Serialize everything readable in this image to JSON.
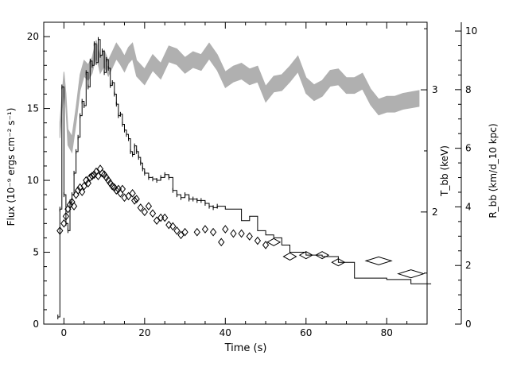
{
  "chart_data": {
    "type": "line",
    "title": "",
    "xlabel": "Time (s)",
    "ylabel_left": "Flux (10⁻⁹ ergs cm⁻² s⁻¹)",
    "ylabel_right_t": "T_bb (keV)",
    "ylabel_right_r": "R_bb (km/d_10 kpc)",
    "xlim": [
      -5,
      90
    ],
    "ylim": [
      0,
      21
    ],
    "x_ticks": [
      0,
      20,
      40,
      60,
      80
    ],
    "y_ticks": [
      0,
      5,
      10,
      15,
      20
    ],
    "t_axis": {
      "label_ticks": [
        2,
        3
      ],
      "label_positions_flux": [
        7.8,
        16.3
      ]
    },
    "r_axis": {
      "range": [
        0,
        10.3
      ],
      "ticks": [
        0,
        2,
        4,
        6,
        8,
        10
      ]
    },
    "series": [
      {
        "kind": "flux-histogram",
        "points": [
          [
            -1.5,
            0.5
          ],
          [
            -1,
            8
          ],
          [
            -0.5,
            16.5
          ],
          [
            0,
            9
          ],
          [
            0.5,
            7
          ],
          [
            1,
            6.5
          ],
          [
            1.5,
            8.5
          ],
          [
            2,
            9
          ],
          [
            2.5,
            10.5
          ],
          [
            3,
            12
          ],
          [
            3.5,
            13
          ],
          [
            4,
            14.5
          ],
          [
            4.5,
            15.5
          ],
          [
            5,
            15.2
          ],
          [
            5.5,
            17.5
          ],
          [
            6,
            16.5
          ],
          [
            6.5,
            18.3
          ],
          [
            7,
            18
          ],
          [
            7.5,
            19.5
          ],
          [
            8,
            18.2
          ],
          [
            8.5,
            19.8
          ],
          [
            9,
            18.7
          ],
          [
            9.5,
            19
          ],
          [
            10,
            17.5
          ],
          [
            10.5,
            18.4
          ],
          [
            11,
            17.8
          ],
          [
            11.5,
            16.6
          ],
          [
            12,
            16.8
          ],
          [
            12.5,
            16
          ],
          [
            13,
            15.3
          ],
          [
            13.5,
            14.5
          ],
          [
            14,
            14.6
          ],
          [
            14.5,
            13.9
          ],
          [
            15,
            13.5
          ],
          [
            15.5,
            13.2
          ],
          [
            16,
            12.9
          ],
          [
            16.5,
            12
          ],
          [
            17,
            11.8
          ],
          [
            17.5,
            12.4
          ],
          [
            18,
            12
          ],
          [
            18.5,
            11.6
          ],
          [
            19,
            11.2
          ],
          [
            19.5,
            10.8
          ],
          [
            20,
            10.5
          ],
          [
            21,
            10.2
          ],
          [
            22,
            10.1
          ],
          [
            23,
            10
          ],
          [
            24,
            10.2
          ],
          [
            25,
            10.4
          ],
          [
            26,
            10.2
          ],
          [
            27,
            9.3
          ],
          [
            28,
            9
          ],
          [
            29,
            8.8
          ],
          [
            30,
            9
          ],
          [
            31,
            8.7
          ],
          [
            32,
            8.7
          ],
          [
            33,
            8.6
          ],
          [
            34,
            8.6
          ],
          [
            35,
            8.4
          ],
          [
            36,
            8.2
          ],
          [
            37,
            8.1
          ],
          [
            38,
            8.2
          ],
          [
            40,
            8
          ],
          [
            42,
            8
          ],
          [
            44,
            7.2
          ],
          [
            46,
            7.5
          ],
          [
            48,
            6.5
          ],
          [
            50,
            6.2
          ],
          [
            52,
            6
          ],
          [
            54,
            5.5
          ],
          [
            56,
            5
          ],
          [
            60,
            4.8
          ],
          [
            64,
            4.7
          ],
          [
            68,
            4.3
          ],
          [
            72,
            3.2
          ],
          [
            80,
            3.1
          ],
          [
            86,
            2.8
          ],
          [
            90,
            2.8
          ]
        ]
      },
      {
        "kind": "temperature-diamonds",
        "points": [
          [
            -1,
            6.5
          ],
          [
            0,
            7
          ],
          [
            0.5,
            7.5
          ],
          [
            1,
            8
          ],
          [
            1.5,
            8.3
          ],
          [
            2,
            8.5
          ],
          [
            2.5,
            8.2
          ],
          [
            3,
            9
          ],
          [
            3.5,
            9.3
          ],
          [
            4,
            9.5
          ],
          [
            4.5,
            9.2
          ],
          [
            5,
            9.6
          ],
          [
            5.5,
            10
          ],
          [
            6,
            9.8
          ],
          [
            6.5,
            10.2
          ],
          [
            7,
            10.3
          ],
          [
            7.5,
            10.4
          ],
          [
            8,
            10.6
          ],
          [
            8.5,
            10.3
          ],
          [
            9,
            10.8
          ],
          [
            9.5,
            10.5
          ],
          [
            10,
            10.4
          ],
          [
            10.5,
            10.2
          ],
          [
            11,
            10
          ],
          [
            11.5,
            9.8
          ],
          [
            12,
            9.6
          ],
          [
            12.5,
            9.5
          ],
          [
            13,
            9.3
          ],
          [
            13.5,
            9.4
          ],
          [
            14,
            9.1
          ],
          [
            14.5,
            9.4
          ],
          [
            15,
            8.8
          ],
          [
            16,
            8.9
          ],
          [
            17,
            9.1
          ],
          [
            17.5,
            8.6
          ],
          [
            18,
            8.7
          ],
          [
            19,
            8.1
          ],
          [
            20,
            7.8
          ],
          [
            21,
            8.2
          ],
          [
            22,
            7.7
          ],
          [
            23,
            7.2
          ],
          [
            24,
            7.4
          ],
          [
            25,
            7.4
          ],
          [
            26,
            6.9
          ],
          [
            27,
            6.8
          ],
          [
            28,
            6.5
          ],
          [
            29,
            6.2
          ],
          [
            30,
            6.4
          ],
          [
            33,
            6.4
          ],
          [
            35,
            6.6
          ],
          [
            37,
            6.4
          ],
          [
            39,
            5.7
          ],
          [
            40,
            6.6
          ],
          [
            42,
            6.3
          ],
          [
            44,
            6.3
          ],
          [
            46,
            6.1
          ],
          [
            48,
            5.8
          ],
          [
            50,
            5.5
          ],
          [
            52,
            5.7
          ],
          [
            56,
            4.7
          ],
          [
            60,
            4.8
          ],
          [
            64,
            4.8
          ],
          [
            68,
            4.3
          ],
          [
            78,
            4.4
          ],
          [
            86,
            3.5
          ]
        ]
      },
      {
        "kind": "radius-band",
        "center": [
          [
            -1,
            13.5
          ],
          [
            0,
            17
          ],
          [
            0.5,
            15.5
          ],
          [
            1,
            13
          ],
          [
            2,
            12.5
          ],
          [
            3,
            14.5
          ],
          [
            4,
            16.8
          ],
          [
            5,
            17.8
          ],
          [
            6,
            17.5
          ],
          [
            7,
            18
          ],
          [
            8,
            19.2
          ],
          [
            9,
            18
          ],
          [
            10,
            18.5
          ],
          [
            11,
            17.8
          ],
          [
            12,
            18.4
          ],
          [
            13,
            19
          ],
          [
            14,
            18.6
          ],
          [
            15,
            18.1
          ],
          [
            16,
            18.7
          ],
          [
            17,
            19
          ],
          [
            18,
            17.8
          ],
          [
            20,
            17.2
          ],
          [
            22,
            18.2
          ],
          [
            24,
            17.6
          ],
          [
            26,
            18.8
          ],
          [
            28,
            18.6
          ],
          [
            30,
            18
          ],
          [
            32,
            18.4
          ],
          [
            34,
            18.2
          ],
          [
            36,
            19
          ],
          [
            38,
            18.2
          ],
          [
            40,
            17
          ],
          [
            42,
            17.4
          ],
          [
            44,
            17.6
          ],
          [
            46,
            17.2
          ],
          [
            48,
            17.4
          ],
          [
            50,
            16
          ],
          [
            52,
            16.7
          ],
          [
            54,
            16.8
          ],
          [
            56,
            17.4
          ],
          [
            58,
            18.1
          ],
          [
            60,
            16.6
          ],
          [
            62,
            16.1
          ],
          [
            64,
            16.4
          ],
          [
            66,
            17.1
          ],
          [
            68,
            17.2
          ],
          [
            70,
            16.6
          ],
          [
            72,
            16.6
          ],
          [
            74,
            16.9
          ],
          [
            76,
            15.8
          ],
          [
            78,
            15.1
          ],
          [
            80,
            15.3
          ],
          [
            82,
            15.3
          ],
          [
            84,
            15.5
          ],
          [
            86,
            15.6
          ],
          [
            88,
            15.7
          ]
        ],
        "half_width": 0.55
      }
    ]
  }
}
